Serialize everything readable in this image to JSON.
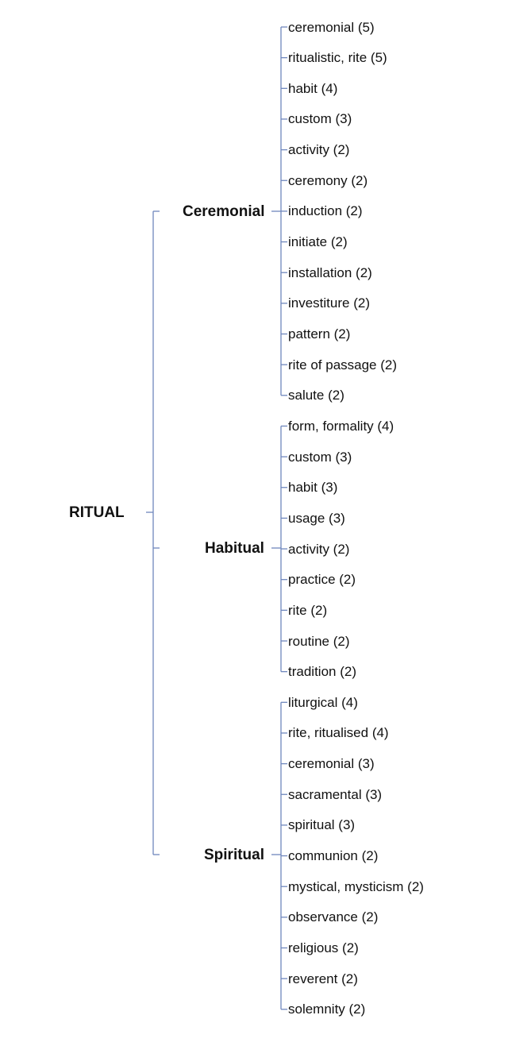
{
  "root": {
    "label": "RITUAL"
  },
  "line_color": "#6f87bd",
  "branches": [
    {
      "label": "Ceremonial",
      "items": [
        "ceremonial (5)",
        "ritualistic, rite (5)",
        "habit (4)",
        "custom (3)",
        "activity (2)",
        "ceremony (2)",
        "induction (2)",
        "initiate (2)",
        "installation (2)",
        "investiture (2)",
        "pattern (2)",
        "rite of passage (2)",
        "salute (2)"
      ]
    },
    {
      "label": "Habitual",
      "items": [
        "form, formality (4)",
        "custom (3)",
        "habit (3)",
        "usage (3)",
        "activity (2)",
        "practice (2)",
        "rite (2)",
        "routine (2)",
        "tradition (2)"
      ]
    },
    {
      "label": "Spiritual",
      "items": [
        "liturgical (4)",
        "rite, ritualised (4)",
        "ceremonial (3)",
        "sacramental (3)",
        "spiritual (3)",
        "communion (2)",
        "mystical, mysticism (2)",
        "observance (2)",
        "religious (2)",
        "reverent (2)",
        "solemnity (2)"
      ]
    }
  ]
}
